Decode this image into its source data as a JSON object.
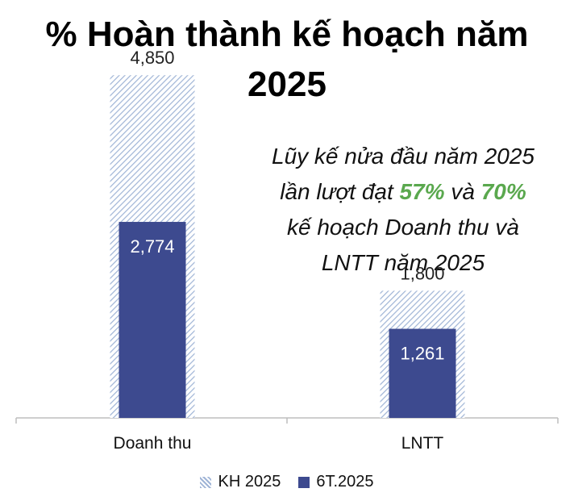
{
  "title_line1": "% Hoàn thành kế hoạch năm",
  "title_line2": "2025",
  "note": {
    "line1": "Lũy kế nửa đầu năm 2025",
    "line2_pre": "lần lượt đạt ",
    "pct_revenue": "57%",
    "line2_mid": " và ",
    "pct_profit": "70%",
    "line3": "kế hoạch Doanh thu và",
    "line4": "LNTT năm 2025"
  },
  "colors": {
    "plan_hatch": "#9fb4d6",
    "actual": "#3d4a8f",
    "highlight": "#5aa84e"
  },
  "chart_data": {
    "type": "bar",
    "categories": [
      "Doanh thu",
      "LNTT"
    ],
    "series": [
      {
        "name": "KH 2025",
        "values": [
          4850,
          1800
        ],
        "labels": [
          "4,850",
          "1,800"
        ]
      },
      {
        "name": "6T.2025",
        "values": [
          2774,
          1261
        ],
        "labels": [
          "2,774",
          "1,261"
        ]
      }
    ],
    "ylim": [
      0,
      5800
    ],
    "grid": false,
    "legend": "bottom"
  },
  "legend": {
    "plan": "KH 2025",
    "actual": "6T.2025"
  }
}
